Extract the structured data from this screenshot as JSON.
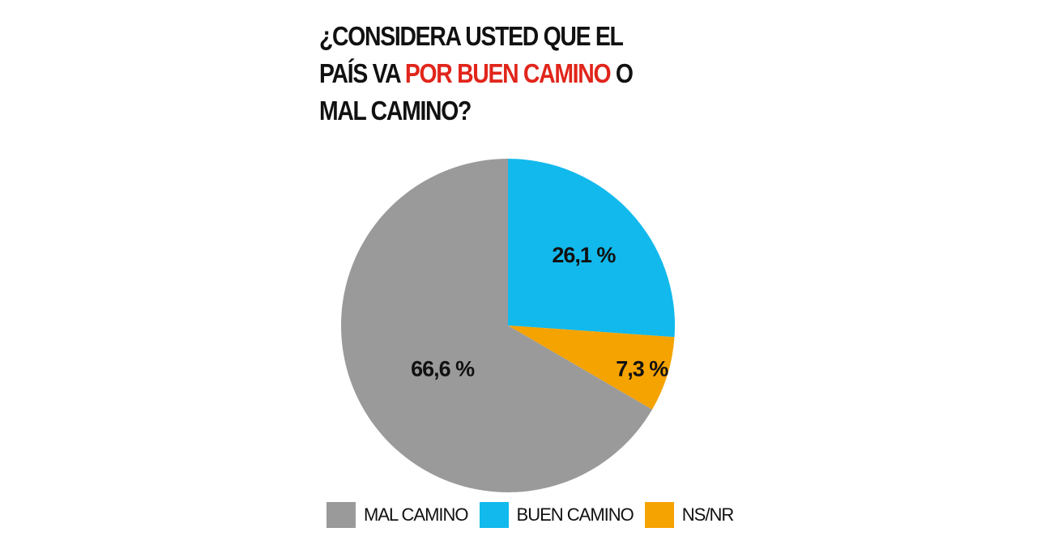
{
  "title": {
    "part1": "¿CONSIDERA USTED QUE EL PAÍS VA ",
    "highlight": "POR BUEN CAMINO",
    "part2": " O MAL CAMINO?",
    "highlight_color": "#e1251b"
  },
  "chart_data": {
    "type": "pie",
    "title": "¿CONSIDERA USTED QUE EL PAÍS VA POR BUEN CAMINO O MAL CAMINO?",
    "start": "12 o'clock, clockwise",
    "slices": [
      {
        "name": "BUEN CAMINO",
        "value": 26.1,
        "label": "26,1 %",
        "color": "#12b9ec"
      },
      {
        "name": "NS/NR",
        "value": 7.3,
        "label": "7,3 %",
        "color": "#f5a300"
      },
      {
        "name": "MAL CAMINO",
        "value": 66.6,
        "label": "66,6 %",
        "color": "#9a9a9a"
      }
    ],
    "legend": {
      "placement": "bottom",
      "items": [
        {
          "label": "MAL CAMINO",
          "color": "#9a9a9a"
        },
        {
          "label": "BUEN CAMINO",
          "color": "#12b9ec"
        },
        {
          "label": "NS/NR",
          "color": "#f5a300"
        }
      ]
    }
  }
}
